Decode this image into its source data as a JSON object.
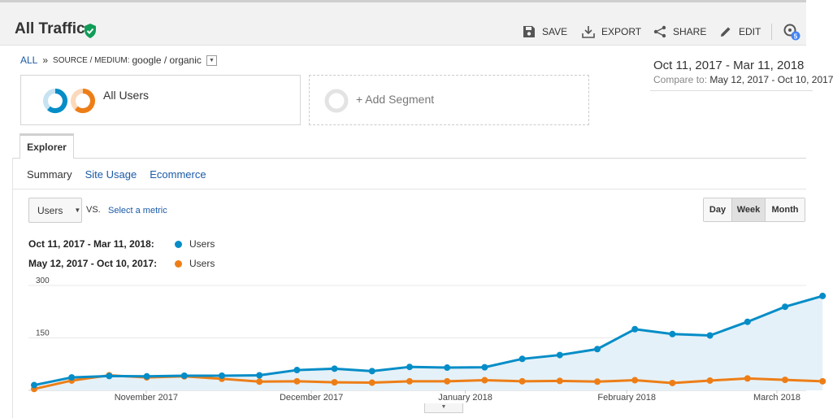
{
  "header": {
    "title": "All Traffic",
    "actions": [
      {
        "label": "SAVE",
        "icon": "save-icon"
      },
      {
        "label": "EXPORT",
        "icon": "export-icon"
      },
      {
        "label": "SHARE",
        "icon": "share-icon"
      },
      {
        "label": "EDIT",
        "icon": "edit-icon"
      }
    ],
    "insights_badge": "5"
  },
  "breadcrumb": {
    "root": "ALL",
    "separator": "»",
    "dimension_label": "SOURCE / MEDIUM:",
    "dimension_value": "google / organic"
  },
  "date_range": {
    "main": "Oct 11, 2017 - Mar 11, 2018",
    "compare_label": "Compare to:",
    "compare_value": "May 12, 2017 - Oct 10, 2017"
  },
  "segments": {
    "active": "All Users",
    "add": "+ Add Segment"
  },
  "tabs": {
    "explorer": "Explorer"
  },
  "subtabs": [
    "Summary",
    "Site Usage",
    "Ecommerce"
  ],
  "metric": {
    "selected": "Users",
    "vs": "VS.",
    "select_metric": "Select a metric"
  },
  "period": {
    "options": [
      "Day",
      "Week",
      "Month"
    ],
    "selected": "Week"
  },
  "legend": [
    {
      "range": "Oct 11, 2017 - Mar 11, 2018:",
      "name": "Users",
      "color": "#058dc7"
    },
    {
      "range": "May 12, 2017 - Oct 10, 2017:",
      "name": "Users",
      "color": "#ed7e17"
    }
  ],
  "colors": {
    "primary": "#058dc7",
    "compare": "#ed7e17",
    "area": "#e5f1f8",
    "link": "#1a5aa6",
    "shield": "#0f9d58"
  },
  "chart_data": {
    "type": "line",
    "ylim": [
      0,
      300
    ],
    "yticks": [
      150,
      300
    ],
    "xtick_labels": [
      "November 2017",
      "December 2017",
      "January 2018",
      "February 2018",
      "March 2018"
    ],
    "series": [
      {
        "name": "Users",
        "values": [
          15,
          37,
          41,
          40,
          42,
          42,
          43,
          58,
          62,
          55,
          67,
          65,
          66,
          90,
          101,
          118,
          175,
          161,
          157,
          196,
          239,
          270
        ]
      },
      {
        "name": "Users",
        "values": [
          4,
          28,
          43,
          37,
          40,
          33,
          25,
          26,
          23,
          22,
          26,
          26,
          29,
          26,
          27,
          25,
          29,
          21,
          28,
          34,
          30,
          26
        ]
      }
    ]
  }
}
